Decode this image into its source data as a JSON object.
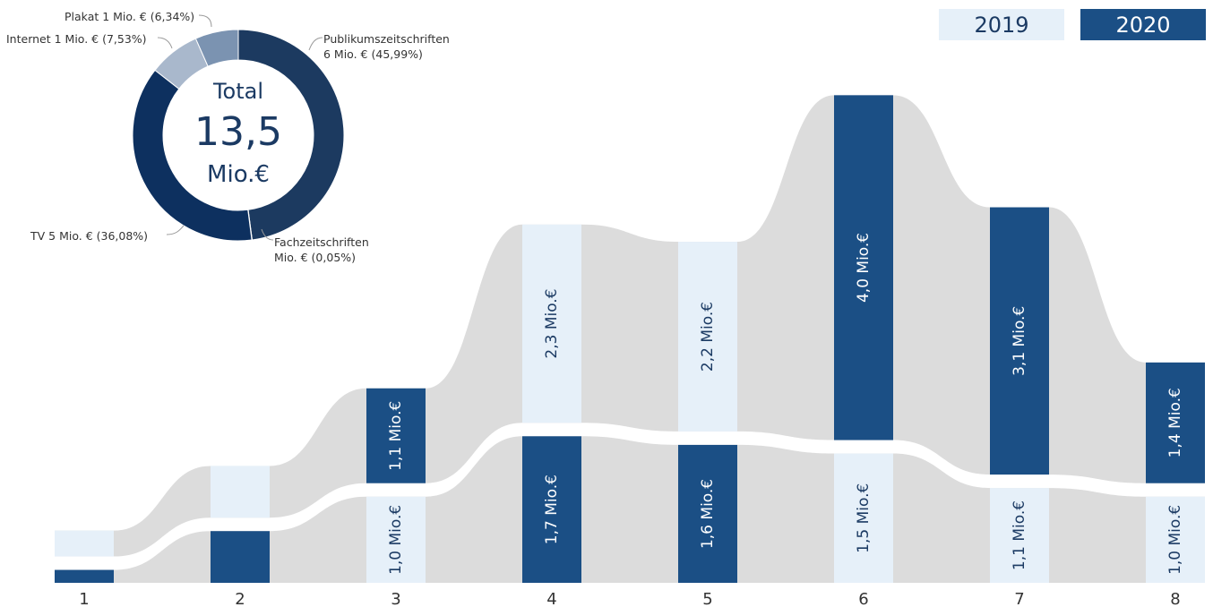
{
  "legend": {
    "item_2019": "2019",
    "item_2020": "2020"
  },
  "donut": {
    "center_line1": "Total",
    "center_value": "13,5",
    "center_unit": "Mio.€",
    "labels": {
      "plakat": "Plakat 1 Mio. € (6,34%)",
      "internet": "Internet 1 Mio. € (7,53%)",
      "publikum_line1": "Publikumszeitschriften",
      "publikum_line2": "6 Mio. € (45,99%)",
      "tv": "TV 5 Mio. € (36,08%)",
      "fach_line1": "Fachzeitschriften",
      "fach_line2": "Mio. € (0,05%)"
    }
  },
  "chart_data": [
    {
      "type": "bar",
      "categories": [
        "1",
        "2",
        "3",
        "4",
        "5",
        "6",
        "7",
        "8"
      ],
      "series": [
        {
          "name": "2019",
          "values": [
            0.3,
            0.6,
            1.0,
            2.3,
            2.2,
            1.5,
            1.1,
            1.0
          ],
          "labels": [
            "",
            "",
            "1,0 Mio.€",
            "2,3 Mio.€",
            "2,2 Mio.€",
            "1,5 Mio.€",
            "1,1 Mio.€",
            "1,0 Mio.€"
          ]
        },
        {
          "name": "2020",
          "values": [
            0.15,
            0.6,
            1.1,
            1.7,
            1.6,
            4.0,
            3.1,
            1.4
          ],
          "labels": [
            "",
            "",
            "1,1 Mio.€",
            "1,7 Mio.€",
            "1,6 Mio.€",
            "4,0 Mio.€",
            "3,1 Mio.€",
            "1,4 Mio.€"
          ]
        }
      ],
      "colors": {
        "2019": "#e6f0f9",
        "2020": "#1b4f85",
        "ribbon": "#dcdcdc"
      },
      "ylim": [
        0,
        5.5
      ]
    },
    {
      "type": "pie",
      "categories": [
        "Publikumszeitschriften",
        "Fachzeitschriften",
        "TV",
        "Internet",
        "Plakat"
      ],
      "values": [
        45.99,
        0.05,
        36.08,
        7.53,
        6.34
      ],
      "colors": [
        "#1c3a60",
        "#4a6f9a",
        "#0d305f",
        "#a9b8cc",
        "#7b93b1"
      ]
    }
  ]
}
